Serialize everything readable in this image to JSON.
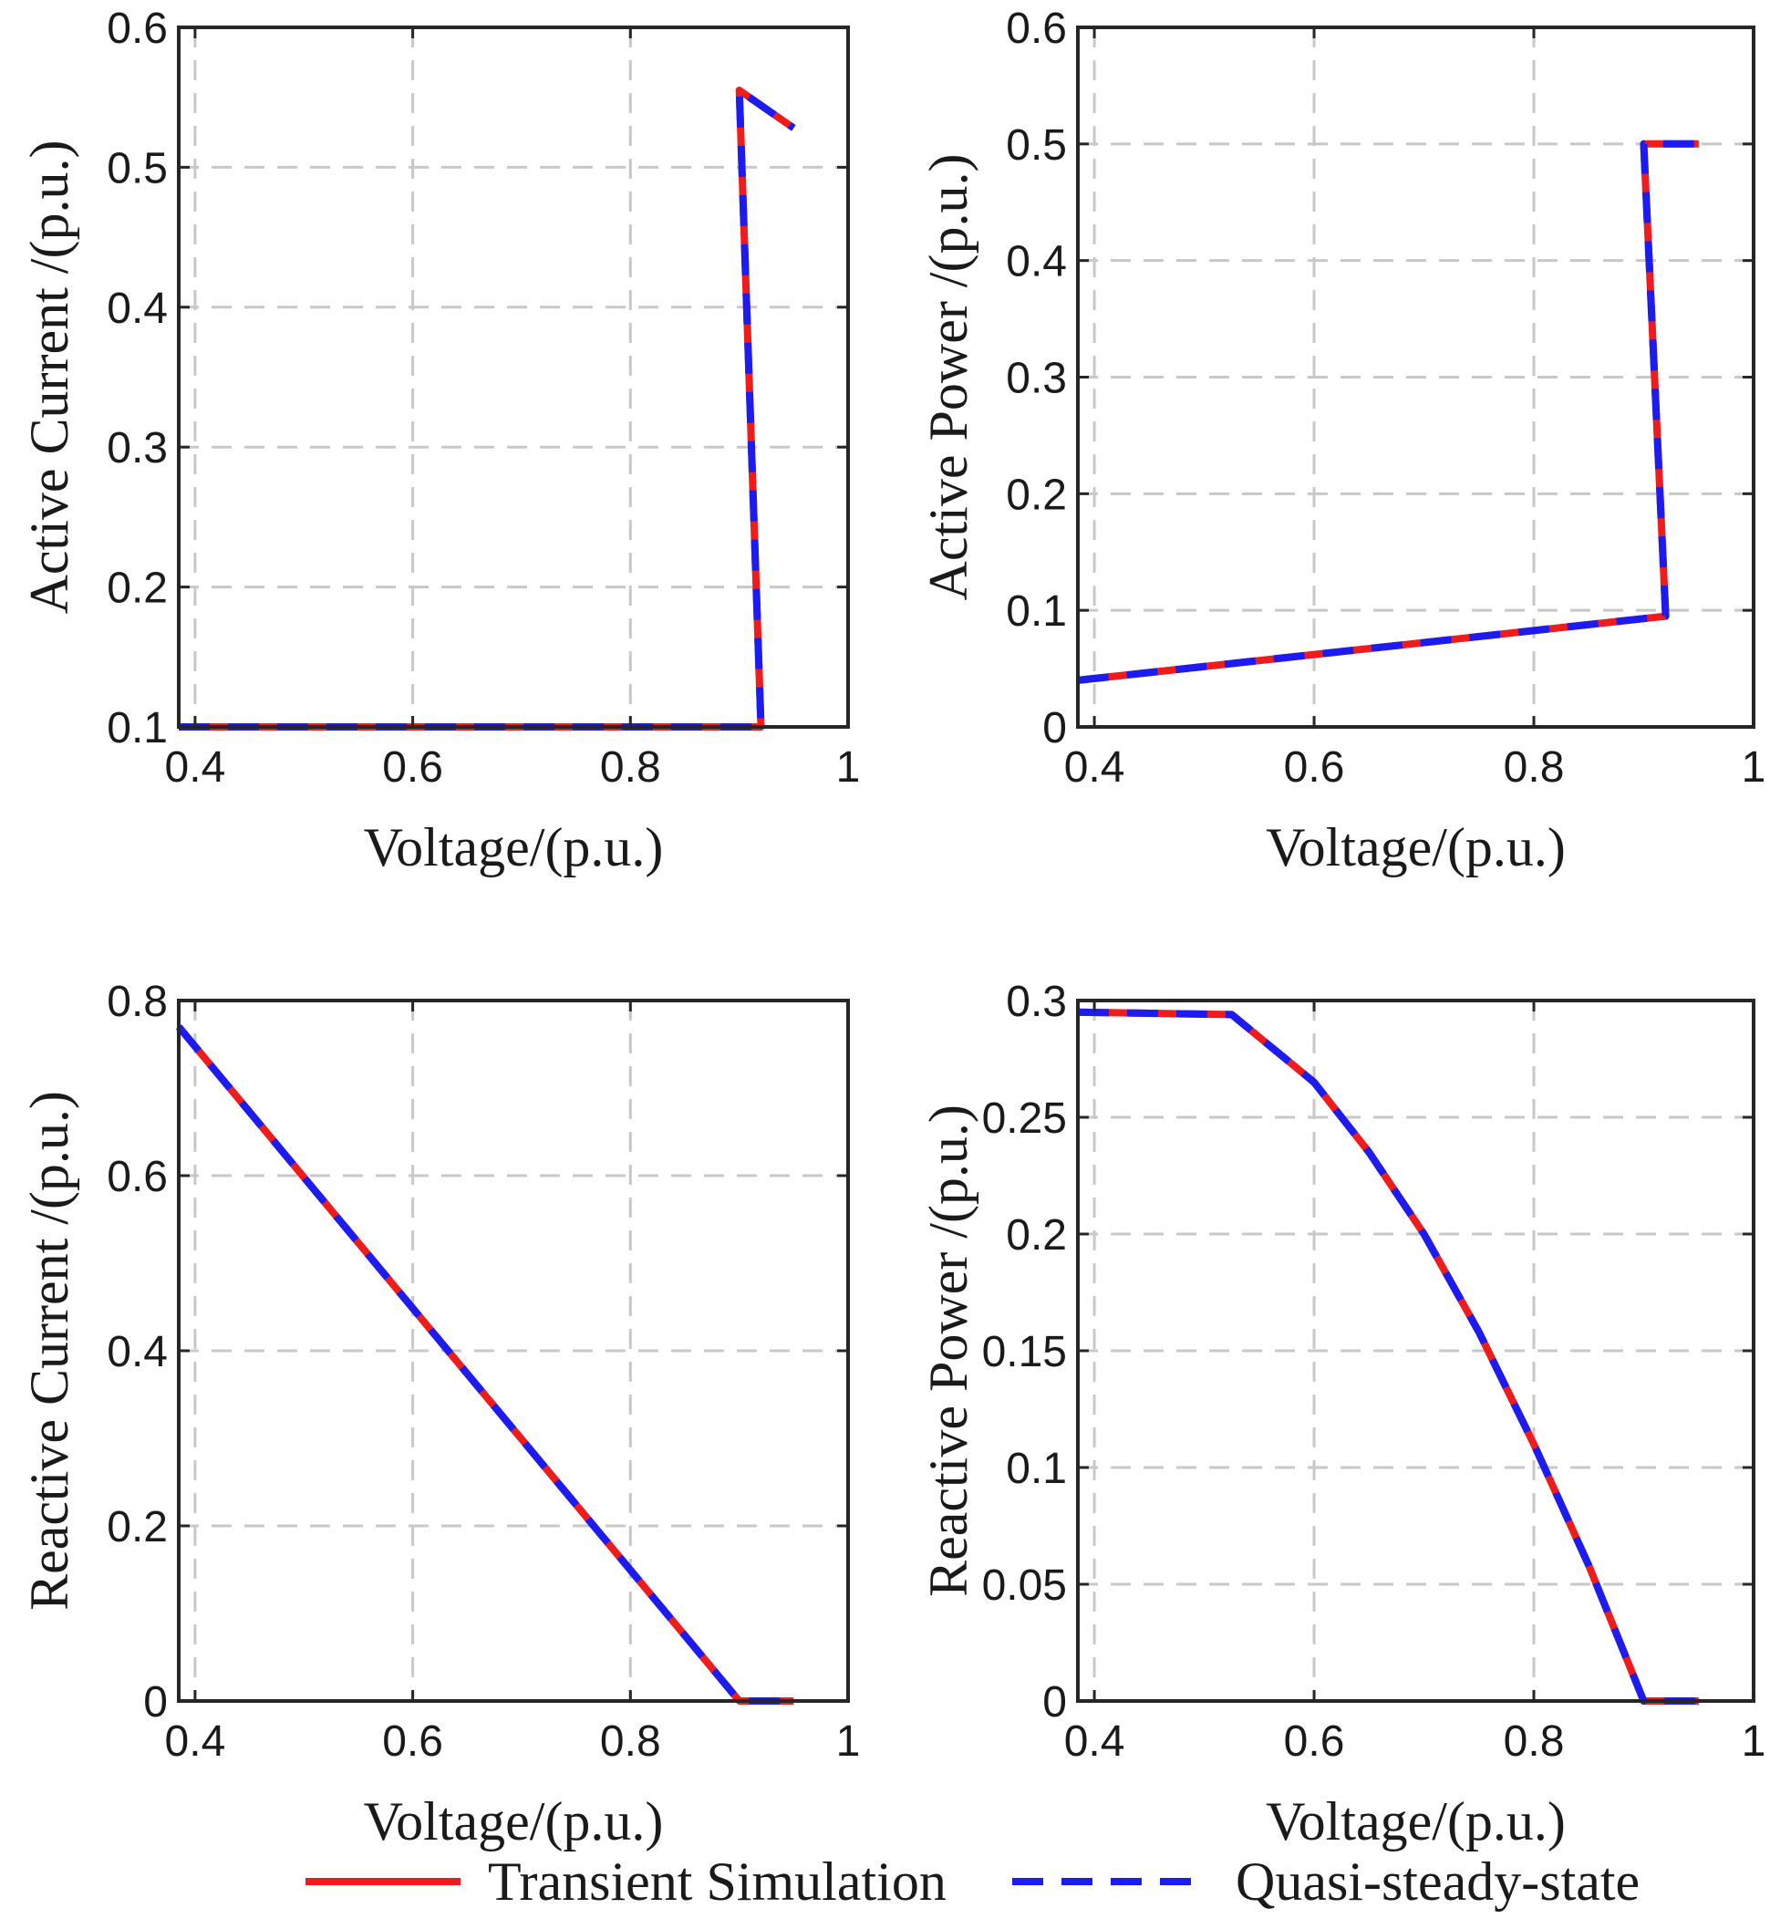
{
  "chart_data": [
    {
      "type": "line",
      "title": "",
      "xlabel": "Voltage/(p.u.)",
      "ylabel": "Active Current /(p.u.)",
      "xlim": [
        0.385,
        1.0
      ],
      "ylim": [
        0.1,
        0.6
      ],
      "xticks": [
        0.4,
        0.6,
        0.8,
        1.0
      ],
      "xtick_labels": [
        "0.4",
        "0.6",
        "0.8",
        "1"
      ],
      "yticks": [
        0.1,
        0.2,
        0.3,
        0.4,
        0.5,
        0.6
      ],
      "ytick_labels": [
        "0.1",
        "0.2",
        "0.3",
        "0.4",
        "0.5",
        "0.6"
      ],
      "grid": true,
      "series": [
        {
          "name": "Transient Simulation",
          "x": [
            0.385,
            0.92,
            0.9,
            0.95
          ],
          "y": [
            0.1,
            0.1,
            0.555,
            0.528
          ]
        },
        {
          "name": "Quasi-steady-state",
          "x": [
            0.385,
            0.92,
            0.9,
            0.95
          ],
          "y": [
            0.1,
            0.1,
            0.555,
            0.528
          ]
        }
      ]
    },
    {
      "type": "line",
      "title": "",
      "xlabel": "Voltage/(p.u.)",
      "ylabel": "Active Power /(p.u.)",
      "xlim": [
        0.385,
        1.0
      ],
      "ylim": [
        0.0,
        0.6
      ],
      "xticks": [
        0.4,
        0.6,
        0.8,
        1.0
      ],
      "xtick_labels": [
        "0.4",
        "0.6",
        "0.8",
        "1"
      ],
      "yticks": [
        0.0,
        0.1,
        0.2,
        0.3,
        0.4,
        0.5,
        0.6
      ],
      "ytick_labels": [
        "0",
        "0.1",
        "0.2",
        "0.3",
        "0.4",
        "0.5",
        "0.6"
      ],
      "grid": true,
      "series": [
        {
          "name": "Transient Simulation",
          "x": [
            0.385,
            0.92,
            0.9,
            0.95
          ],
          "y": [
            0.04,
            0.095,
            0.5,
            0.5
          ]
        },
        {
          "name": "Quasi-steady-state",
          "x": [
            0.385,
            0.92,
            0.9,
            0.95
          ],
          "y": [
            0.04,
            0.095,
            0.5,
            0.5
          ]
        }
      ]
    },
    {
      "type": "line",
      "title": "",
      "xlabel": "Voltage/(p.u.)",
      "ylabel": "Reactive Current /(p.u.)",
      "xlim": [
        0.385,
        1.0
      ],
      "ylim": [
        0.0,
        0.8
      ],
      "xticks": [
        0.4,
        0.6,
        0.8,
        1.0
      ],
      "xtick_labels": [
        "0.4",
        "0.6",
        "0.8",
        "1"
      ],
      "yticks": [
        0.0,
        0.2,
        0.4,
        0.6,
        0.8
      ],
      "ytick_labels": [
        "0",
        "0.2",
        "0.4",
        "0.6",
        "0.8"
      ],
      "grid": true,
      "series": [
        {
          "name": "Transient Simulation",
          "x": [
            0.385,
            0.9,
            0.95
          ],
          "y": [
            0.77,
            0.0,
            0.0
          ]
        },
        {
          "name": "Quasi-steady-state",
          "x": [
            0.385,
            0.9,
            0.95
          ],
          "y": [
            0.77,
            0.0,
            0.0
          ]
        }
      ]
    },
    {
      "type": "line",
      "title": "",
      "xlabel": "Voltage/(p.u.)",
      "ylabel": "Reactive Power /(p.u.)",
      "xlim": [
        0.385,
        1.0
      ],
      "ylim": [
        0.0,
        0.3
      ],
      "xticks": [
        0.4,
        0.6,
        0.8,
        1.0
      ],
      "xtick_labels": [
        "0.4",
        "0.6",
        "0.8",
        "1"
      ],
      "yticks": [
        0.0,
        0.05,
        0.1,
        0.15,
        0.2,
        0.25,
        0.3
      ],
      "ytick_labels": [
        "0",
        "0.05",
        "0.1",
        "0.15",
        "0.2",
        "0.25",
        "0.3"
      ],
      "grid": true,
      "series": [
        {
          "name": "Transient Simulation",
          "x": [
            0.385,
            0.525,
            0.6,
            0.65,
            0.7,
            0.75,
            0.8,
            0.85,
            0.9,
            0.95
          ],
          "y": [
            0.295,
            0.294,
            0.265,
            0.235,
            0.2,
            0.158,
            0.11,
            0.058,
            0.0,
            0.0
          ]
        },
        {
          "name": "Quasi-steady-state",
          "x": [
            0.385,
            0.525,
            0.6,
            0.65,
            0.7,
            0.75,
            0.8,
            0.85,
            0.9,
            0.95
          ],
          "y": [
            0.295,
            0.294,
            0.265,
            0.235,
            0.2,
            0.158,
            0.11,
            0.058,
            0.0,
            0.0
          ]
        }
      ]
    }
  ],
  "legend": {
    "entries": [
      "Transient Simulation",
      "Quasi-steady-state"
    ],
    "placement": "bottom-center"
  },
  "colors": {
    "transient": "#ee1c1c",
    "quasi": "#1c1cf0",
    "grid": "#c8c8c8",
    "frame": "#262626"
  }
}
